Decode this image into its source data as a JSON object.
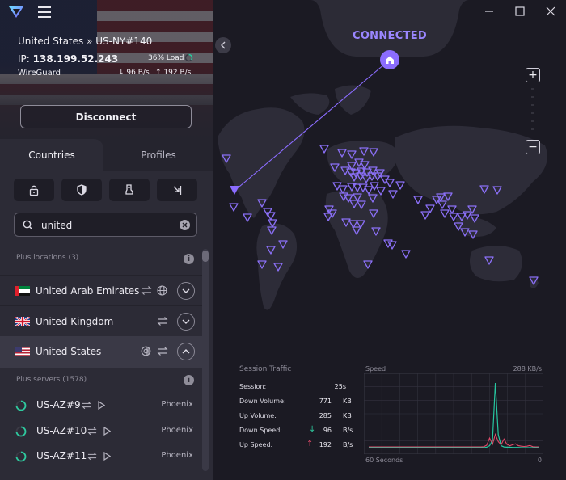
{
  "connection": {
    "server_path": "United States » US-NY#140",
    "ip_label": "IP:",
    "ip": "138.199.52.243",
    "load": "36% Load",
    "protocol": "WireGuard",
    "down_rate": "96 B/s",
    "up_rate": "192 B/s",
    "status": "CONNECTED",
    "load_fraction": 0.36
  },
  "buttons": {
    "disconnect": "Disconnect"
  },
  "tabs": [
    {
      "label": "Countries"
    },
    {
      "label": "Profiles"
    }
  ],
  "filters": [
    "lock-icon",
    "shield-icon",
    "tor-icon",
    "p2p-icon"
  ],
  "search": {
    "value": "united"
  },
  "sections": {
    "plus_locations": "Plus locations (3)",
    "plus_servers": "Plus servers (1578)"
  },
  "countries": [
    {
      "name": "United Arab Emirates"
    },
    {
      "name": "United Kingdom"
    },
    {
      "name": "United States"
    }
  ],
  "servers": [
    {
      "name": "US-AZ#9",
      "city": "Phoenix"
    },
    {
      "name": "US-AZ#10",
      "city": "Phoenix"
    },
    {
      "name": "US-AZ#11",
      "city": "Phoenix"
    }
  ],
  "stats": {
    "title": "Session Traffic",
    "rows": [
      {
        "label": "Session:",
        "value": "25s",
        "unit": ""
      },
      {
        "label": "Down Volume:",
        "value": "771",
        "unit": "KB"
      },
      {
        "label": "Up Volume:",
        "value": "285",
        "unit": "KB"
      },
      {
        "label": "Down Speed:",
        "value": "96",
        "unit": "B/s"
      },
      {
        "label": "Up Speed:",
        "value": "192",
        "unit": "B/s"
      }
    ]
  },
  "speed_graph": {
    "title": "Speed",
    "max_label": "288 KB/s",
    "x_start_label": "60 Seconds",
    "x_end_label": "0",
    "max_kbs": 288,
    "download_kbs": [
      0,
      0,
      0,
      0,
      0,
      0,
      0,
      0,
      0,
      0,
      0,
      0,
      0,
      0,
      0,
      0,
      0,
      0,
      0,
      0,
      0,
      0,
      0,
      0,
      0,
      0,
      0,
      0,
      0,
      0,
      0,
      0,
      0,
      0,
      0,
      0,
      0,
      0,
      0,
      0,
      0,
      2,
      8,
      30,
      268,
      55,
      8,
      3,
      2,
      2,
      1,
      1,
      1,
      0,
      0,
      0,
      0,
      0,
      0,
      0
    ],
    "upload_kbs": [
      3,
      3,
      3,
      3,
      3,
      3,
      3,
      3,
      3,
      3,
      3,
      3,
      3,
      3,
      3,
      3,
      3,
      3,
      3,
      3,
      3,
      3,
      3,
      3,
      3,
      3,
      3,
      3,
      3,
      3,
      3,
      3,
      3,
      3,
      3,
      3,
      3,
      3,
      3,
      3,
      4,
      10,
      40,
      14,
      55,
      25,
      12,
      36,
      14,
      8,
      12,
      16,
      8,
      6,
      5,
      6,
      9,
      4,
      3,
      3
    ],
    "colors": {
      "download": "#27c6a0",
      "upload": "#e44a6a"
    }
  },
  "colors": {
    "accent": "#8b6cff",
    "marker": "#8a6ff5",
    "land": "#2d2c38"
  }
}
